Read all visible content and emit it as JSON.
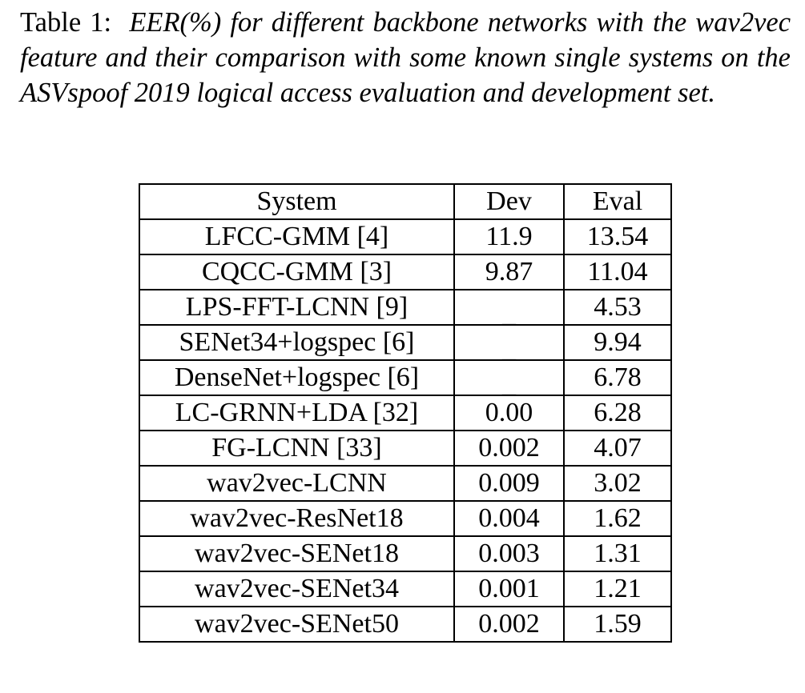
{
  "caption": {
    "label": "Table 1:",
    "text": "EER(%) for different backbone networks with the wav2vec feature and their comparison with some known single systems on the ASVspoof 2019 logical access evaluation and development set."
  },
  "table": {
    "headers": [
      "System",
      "Dev",
      "Eval"
    ],
    "rows": [
      {
        "system": "LFCC-GMM [4]",
        "dev": "11.9",
        "eval": "13.54"
      },
      {
        "system": "CQCC-GMM [3]",
        "dev": "9.87",
        "eval": "11.04"
      },
      {
        "system": "LPS-FFT-LCNN [9]",
        "dev": "_",
        "eval": "4.53"
      },
      {
        "system": "SENet34+logspec [6]",
        "dev": "_",
        "eval": "9.94"
      },
      {
        "system": "DenseNet+logspec [6]",
        "dev": "_",
        "eval": "6.78"
      },
      {
        "system": "LC-GRNN+LDA [32]",
        "dev": "0.00",
        "eval": "6.28"
      },
      {
        "system": "FG-LCNN [33]",
        "dev": "0.002",
        "eval": "4.07"
      },
      {
        "system": "wav2vec-LCNN",
        "dev": "0.009",
        "eval": "3.02"
      },
      {
        "system": "wav2vec-ResNet18",
        "dev": "0.004",
        "eval": "1.62"
      },
      {
        "system": "wav2vec-SENet18",
        "dev": "0.003",
        "eval": "1.31"
      },
      {
        "system": "wav2vec-SENet34",
        "dev": "0.001",
        "eval": "1.21",
        "best": true
      },
      {
        "system": "wav2vec-SENet50",
        "dev": "0.002",
        "eval": "1.59"
      }
    ]
  }
}
